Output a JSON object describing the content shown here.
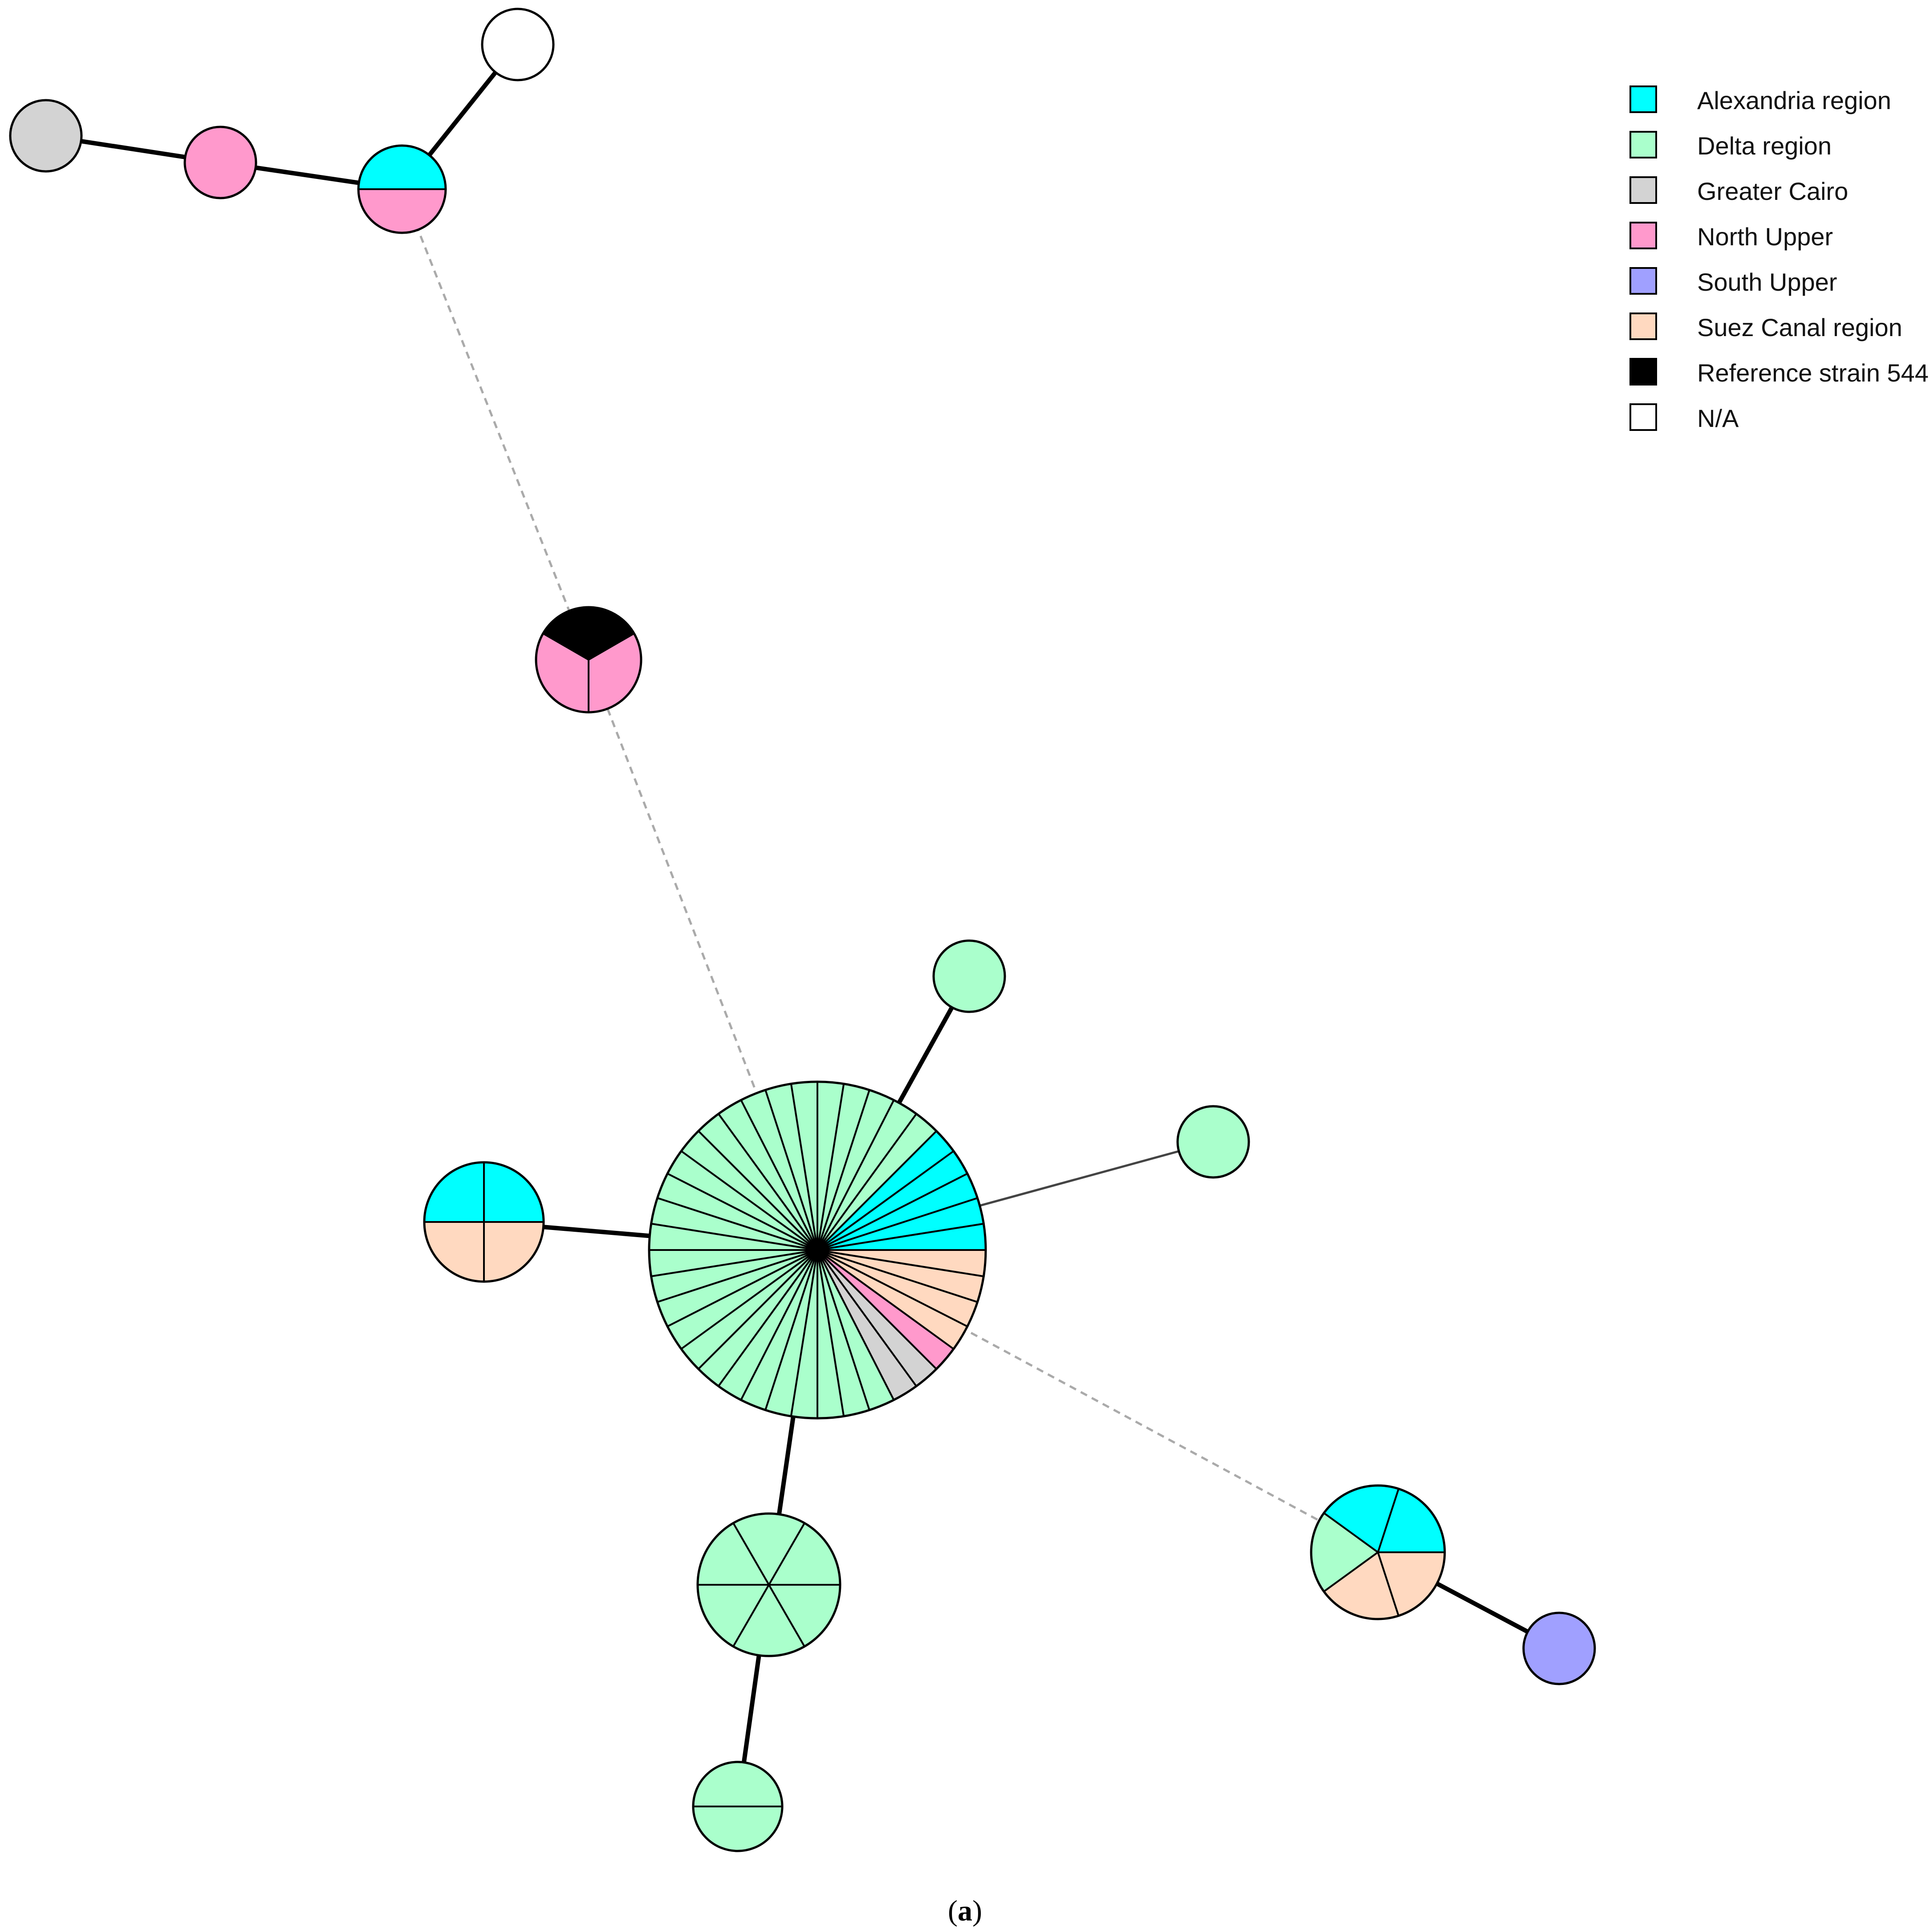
{
  "legend": {
    "items": [
      {
        "key": "alexandria",
        "label": "Alexandria region",
        "color": "#00ffff"
      },
      {
        "key": "delta",
        "label": "Delta region",
        "color": "#aaffcc"
      },
      {
        "key": "cairo",
        "label": "Greater Cairo",
        "color": "#d3d3d3"
      },
      {
        "key": "northupper",
        "label": "North Upper",
        "color": "#ff99cc"
      },
      {
        "key": "southupper",
        "label": "South Upper",
        "color": "#a0a0ff"
      },
      {
        "key": "suez",
        "label": "Suez Canal region",
        "color": "#ffd9c0"
      },
      {
        "key": "reference",
        "label": "Reference strain 544",
        "color": "#000000"
      },
      {
        "key": "na",
        "label": "N/A",
        "color": "#ffffff"
      }
    ]
  },
  "caption": {
    "prefix": "(",
    "letter": "a",
    "suffix": ")"
  },
  "network": {
    "nodes": [
      {
        "id": "hub",
        "isolates": 40,
        "regions": {
          "delta": 28,
          "alexandria": 5,
          "suez": 4,
          "northupper": 1,
          "cairo": 2
        }
      },
      {
        "id": "cluster_top",
        "isolates": 3,
        "regions": {
          "northupper": 2,
          "reference": 1
        }
      },
      {
        "id": "pair_top",
        "isolates": 2,
        "regions": {
          "alexandria": 1,
          "northupper": 1
        }
      },
      {
        "id": "na_top",
        "isolates": 1,
        "regions": {
          "na": 1
        }
      },
      {
        "id": "pink_top",
        "isolates": 1,
        "regions": {
          "northupper": 1
        }
      },
      {
        "id": "gray_top",
        "isolates": 1,
        "regions": {
          "cairo": 1
        }
      },
      {
        "id": "left4",
        "isolates": 4,
        "regions": {
          "alexandria": 2,
          "suez": 2
        }
      },
      {
        "id": "green_a",
        "isolates": 1,
        "regions": {
          "delta": 1
        }
      },
      {
        "id": "green_b",
        "isolates": 1,
        "regions": {
          "delta": 1
        }
      },
      {
        "id": "green6",
        "isolates": 6,
        "regions": {
          "delta": 6
        }
      },
      {
        "id": "green2",
        "isolates": 2,
        "regions": {
          "delta": 2
        }
      },
      {
        "id": "right5",
        "isolates": 5,
        "regions": {
          "alexandria": 2,
          "suez": 2,
          "delta": 1
        }
      },
      {
        "id": "blue_right",
        "isolates": 1,
        "regions": {
          "southupper": 1
        }
      }
    ],
    "edges": [
      {
        "from": "hub",
        "to": "green_a",
        "style": "thick"
      },
      {
        "from": "hub",
        "to": "green_b",
        "style": "thin"
      },
      {
        "from": "hub",
        "to": "left4",
        "style": "thick"
      },
      {
        "from": "hub",
        "to": "green6",
        "style": "thick"
      },
      {
        "from": "green6",
        "to": "green2",
        "style": "thick"
      },
      {
        "from": "hub",
        "to": "right5",
        "style": "dashed"
      },
      {
        "from": "right5",
        "to": "blue_right",
        "style": "thick"
      },
      {
        "from": "hub",
        "to": "cluster_top",
        "style": "dashed"
      },
      {
        "from": "cluster_top",
        "to": "pair_top",
        "style": "dashed"
      },
      {
        "from": "pair_top",
        "to": "na_top",
        "style": "thick"
      },
      {
        "from": "pair_top",
        "to": "pink_top",
        "style": "thick"
      },
      {
        "from": "pink_top",
        "to": "gray_top",
        "style": "thick"
      }
    ]
  }
}
